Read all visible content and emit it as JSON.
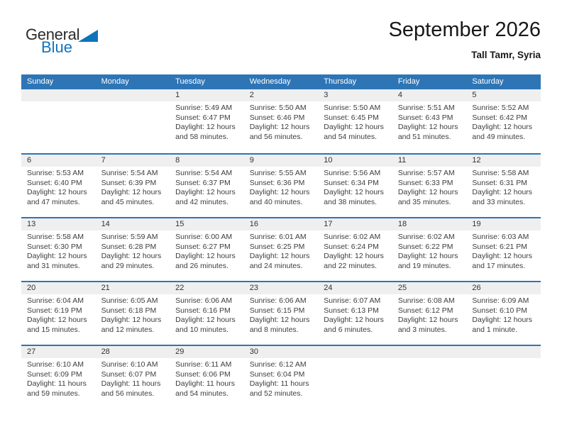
{
  "logo": {
    "general": "General",
    "blue": "Blue"
  },
  "header": {
    "title": "September 2026",
    "subtitle": "Tall Tamr, Syria"
  },
  "weekdays": [
    "Sunday",
    "Monday",
    "Tuesday",
    "Wednesday",
    "Thursday",
    "Friday",
    "Saturday"
  ],
  "colors": {
    "accent_blue": "#2E75B6",
    "number_strip_gray": "#EFEFEF",
    "logo_blue": "#1373bd",
    "text_dark": "#3d3d3d"
  },
  "weeks": [
    [
      {
        "day": "",
        "sunrise": "",
        "sunset": "",
        "daylight": ""
      },
      {
        "day": "",
        "sunrise": "",
        "sunset": "",
        "daylight": ""
      },
      {
        "day": "1",
        "sunrise": "Sunrise: 5:49 AM",
        "sunset": "Sunset: 6:47 PM",
        "daylight": "Daylight: 12 hours and 58 minutes."
      },
      {
        "day": "2",
        "sunrise": "Sunrise: 5:50 AM",
        "sunset": "Sunset: 6:46 PM",
        "daylight": "Daylight: 12 hours and 56 minutes."
      },
      {
        "day": "3",
        "sunrise": "Sunrise: 5:50 AM",
        "sunset": "Sunset: 6:45 PM",
        "daylight": "Daylight: 12 hours and 54 minutes."
      },
      {
        "day": "4",
        "sunrise": "Sunrise: 5:51 AM",
        "sunset": "Sunset: 6:43 PM",
        "daylight": "Daylight: 12 hours and 51 minutes."
      },
      {
        "day": "5",
        "sunrise": "Sunrise: 5:52 AM",
        "sunset": "Sunset: 6:42 PM",
        "daylight": "Daylight: 12 hours and 49 minutes."
      }
    ],
    [
      {
        "day": "6",
        "sunrise": "Sunrise: 5:53 AM",
        "sunset": "Sunset: 6:40 PM",
        "daylight": "Daylight: 12 hours and 47 minutes."
      },
      {
        "day": "7",
        "sunrise": "Sunrise: 5:54 AM",
        "sunset": "Sunset: 6:39 PM",
        "daylight": "Daylight: 12 hours and 45 minutes."
      },
      {
        "day": "8",
        "sunrise": "Sunrise: 5:54 AM",
        "sunset": "Sunset: 6:37 PM",
        "daylight": "Daylight: 12 hours and 42 minutes."
      },
      {
        "day": "9",
        "sunrise": "Sunrise: 5:55 AM",
        "sunset": "Sunset: 6:36 PM",
        "daylight": "Daylight: 12 hours and 40 minutes."
      },
      {
        "day": "10",
        "sunrise": "Sunrise: 5:56 AM",
        "sunset": "Sunset: 6:34 PM",
        "daylight": "Daylight: 12 hours and 38 minutes."
      },
      {
        "day": "11",
        "sunrise": "Sunrise: 5:57 AM",
        "sunset": "Sunset: 6:33 PM",
        "daylight": "Daylight: 12 hours and 35 minutes."
      },
      {
        "day": "12",
        "sunrise": "Sunrise: 5:58 AM",
        "sunset": "Sunset: 6:31 PM",
        "daylight": "Daylight: 12 hours and 33 minutes."
      }
    ],
    [
      {
        "day": "13",
        "sunrise": "Sunrise: 5:58 AM",
        "sunset": "Sunset: 6:30 PM",
        "daylight": "Daylight: 12 hours and 31 minutes."
      },
      {
        "day": "14",
        "sunrise": "Sunrise: 5:59 AM",
        "sunset": "Sunset: 6:28 PM",
        "daylight": "Daylight: 12 hours and 29 minutes."
      },
      {
        "day": "15",
        "sunrise": "Sunrise: 6:00 AM",
        "sunset": "Sunset: 6:27 PM",
        "daylight": "Daylight: 12 hours and 26 minutes."
      },
      {
        "day": "16",
        "sunrise": "Sunrise: 6:01 AM",
        "sunset": "Sunset: 6:25 PM",
        "daylight": "Daylight: 12 hours and 24 minutes."
      },
      {
        "day": "17",
        "sunrise": "Sunrise: 6:02 AM",
        "sunset": "Sunset: 6:24 PM",
        "daylight": "Daylight: 12 hours and 22 minutes."
      },
      {
        "day": "18",
        "sunrise": "Sunrise: 6:02 AM",
        "sunset": "Sunset: 6:22 PM",
        "daylight": "Daylight: 12 hours and 19 minutes."
      },
      {
        "day": "19",
        "sunrise": "Sunrise: 6:03 AM",
        "sunset": "Sunset: 6:21 PM",
        "daylight": "Daylight: 12 hours and 17 minutes."
      }
    ],
    [
      {
        "day": "20",
        "sunrise": "Sunrise: 6:04 AM",
        "sunset": "Sunset: 6:19 PM",
        "daylight": "Daylight: 12 hours and 15 minutes."
      },
      {
        "day": "21",
        "sunrise": "Sunrise: 6:05 AM",
        "sunset": "Sunset: 6:18 PM",
        "daylight": "Daylight: 12 hours and 12 minutes."
      },
      {
        "day": "22",
        "sunrise": "Sunrise: 6:06 AM",
        "sunset": "Sunset: 6:16 PM",
        "daylight": "Daylight: 12 hours and 10 minutes."
      },
      {
        "day": "23",
        "sunrise": "Sunrise: 6:06 AM",
        "sunset": "Sunset: 6:15 PM",
        "daylight": "Daylight: 12 hours and 8 minutes."
      },
      {
        "day": "24",
        "sunrise": "Sunrise: 6:07 AM",
        "sunset": "Sunset: 6:13 PM",
        "daylight": "Daylight: 12 hours and 6 minutes."
      },
      {
        "day": "25",
        "sunrise": "Sunrise: 6:08 AM",
        "sunset": "Sunset: 6:12 PM",
        "daylight": "Daylight: 12 hours and 3 minutes."
      },
      {
        "day": "26",
        "sunrise": "Sunrise: 6:09 AM",
        "sunset": "Sunset: 6:10 PM",
        "daylight": "Daylight: 12 hours and 1 minute."
      }
    ],
    [
      {
        "day": "27",
        "sunrise": "Sunrise: 6:10 AM",
        "sunset": "Sunset: 6:09 PM",
        "daylight": "Daylight: 11 hours and 59 minutes."
      },
      {
        "day": "28",
        "sunrise": "Sunrise: 6:10 AM",
        "sunset": "Sunset: 6:07 PM",
        "daylight": "Daylight: 11 hours and 56 minutes."
      },
      {
        "day": "29",
        "sunrise": "Sunrise: 6:11 AM",
        "sunset": "Sunset: 6:06 PM",
        "daylight": "Daylight: 11 hours and 54 minutes."
      },
      {
        "day": "30",
        "sunrise": "Sunrise: 6:12 AM",
        "sunset": "Sunset: 6:04 PM",
        "daylight": "Daylight: 11 hours and 52 minutes."
      },
      {
        "day": "",
        "sunrise": "",
        "sunset": "",
        "daylight": ""
      },
      {
        "day": "",
        "sunrise": "",
        "sunset": "",
        "daylight": ""
      },
      {
        "day": "",
        "sunrise": "",
        "sunset": "",
        "daylight": ""
      }
    ]
  ]
}
